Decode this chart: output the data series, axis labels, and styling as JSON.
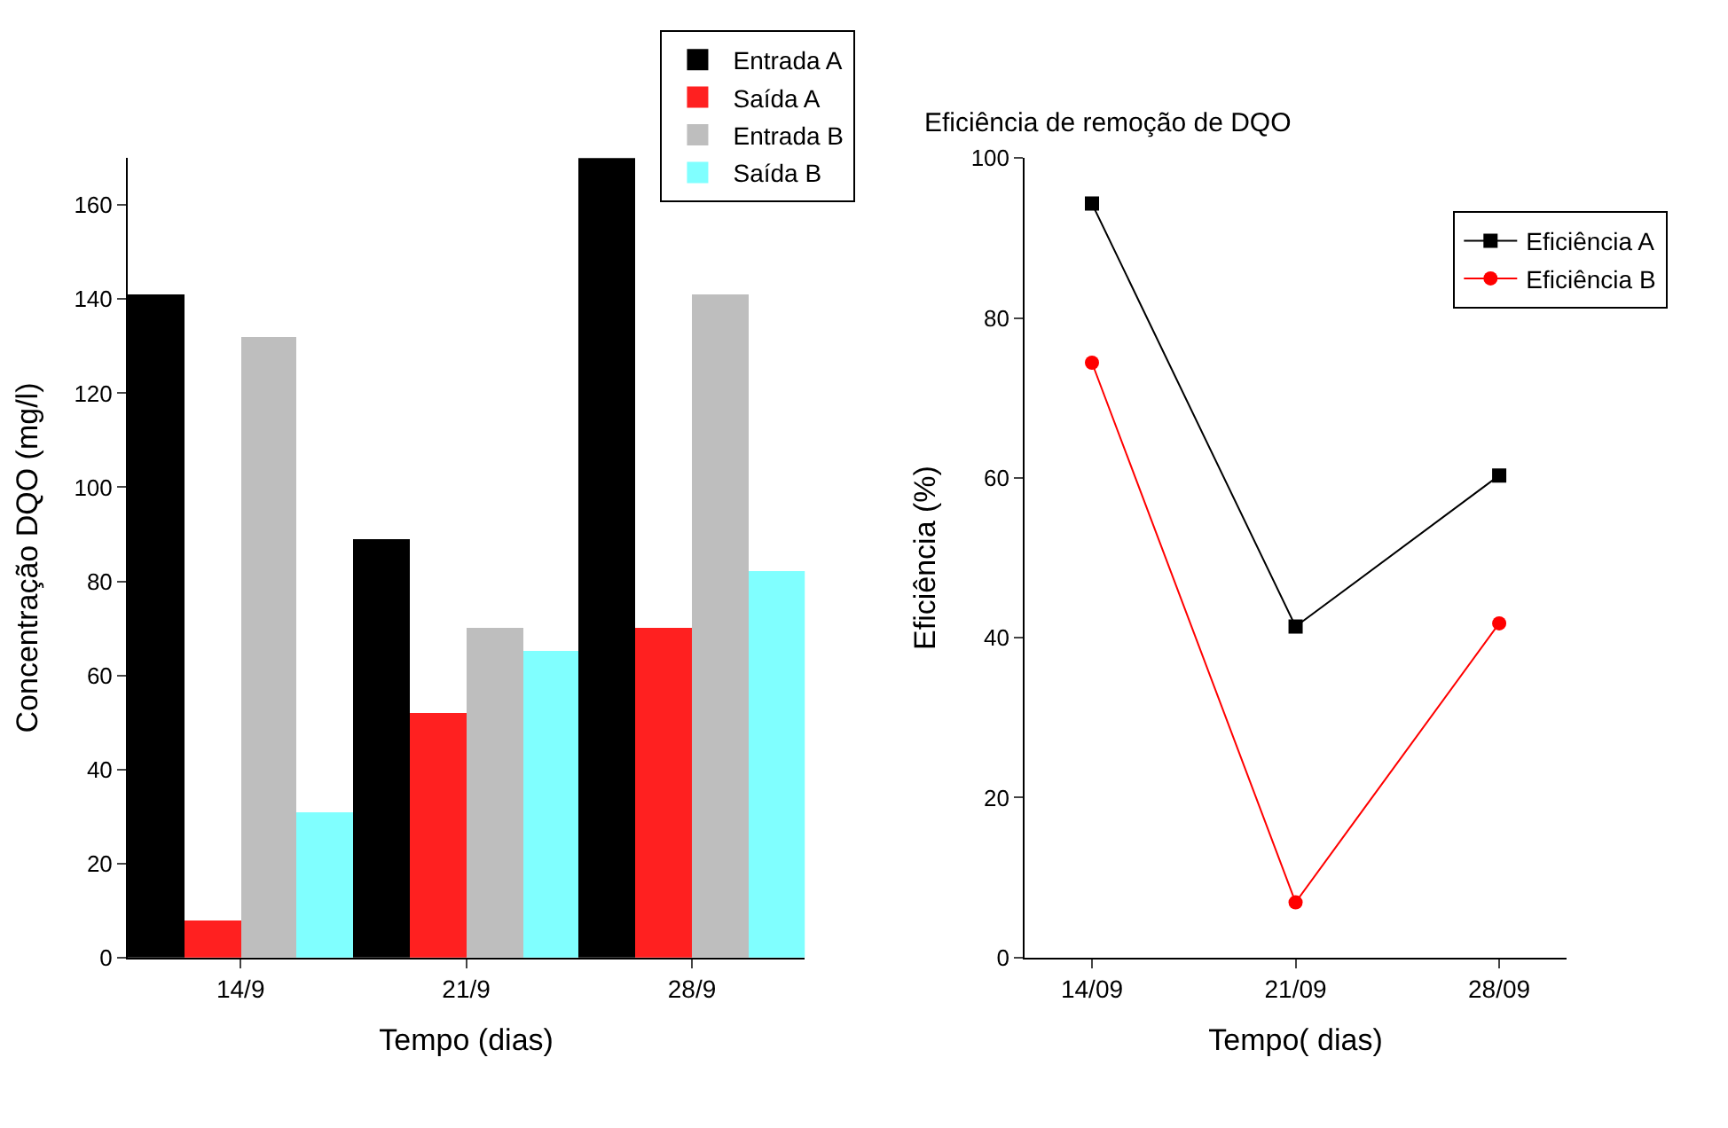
{
  "chart_data": [
    {
      "type": "bar",
      "xlabel": "Tempo (dias)",
      "ylabel": "Concentração DQO (mg/l)",
      "categories": [
        "14/9",
        "21/9",
        "28/9"
      ],
      "ylim": [
        0,
        170
      ],
      "yticks": [
        0,
        20,
        40,
        60,
        80,
        100,
        120,
        140,
        160
      ],
      "legend": "top right",
      "series": [
        {
          "name": "Entrada A",
          "color": "#000000",
          "values": [
            141,
            89,
            170
          ]
        },
        {
          "name": "Saída A",
          "color": "#ff2020",
          "values": [
            8,
            52,
            70
          ]
        },
        {
          "name": "Entrada B",
          "color": "#bebebe",
          "values": [
            132,
            70,
            141
          ]
        },
        {
          "name": "Saída B",
          "color": "#80ffff",
          "values": [
            31,
            65,
            82
          ]
        }
      ]
    },
    {
      "type": "line",
      "title": "Eficiência de remoção de DQO",
      "xlabel": "Tempo( dias)",
      "ylabel": "Eficiência (%)",
      "categories": [
        "14/09",
        "21/09",
        "28/09"
      ],
      "ylim": [
        0,
        100
      ],
      "yticks": [
        0,
        20,
        40,
        60,
        80,
        100
      ],
      "legend": "top right",
      "line_style": "solid",
      "series": [
        {
          "name": "Eficiência A",
          "color": "#000000",
          "marker": "square",
          "values": [
            94.3,
            41.4,
            60.3
          ]
        },
        {
          "name": "Eficiência B",
          "color": "#ff0000",
          "marker": "circle",
          "values": [
            74.4,
            6.9,
            41.8
          ]
        }
      ]
    }
  ]
}
